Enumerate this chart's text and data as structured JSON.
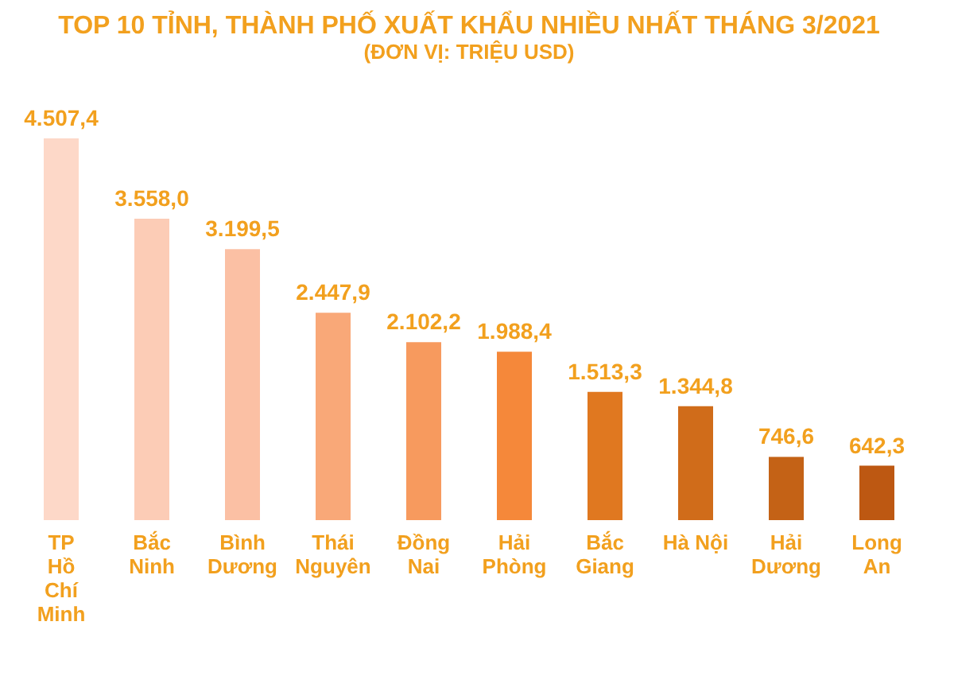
{
  "chart_data": {
    "type": "bar",
    "title": "TOP 10 TỈNH, THÀNH PHỐ XUẤT KHẨU NHIỀU NHẤT THÁNG 3/2021",
    "subtitle": "(ĐƠN VỊ: TRIỆU USD)",
    "categories": [
      "TP Hồ Chí Minh",
      "Bắc Ninh",
      "Bình Dương",
      "Thái Nguyên",
      "Đồng Nai",
      "Hải Phòng",
      "Bắc Giang",
      "Hà Nội",
      "Hải Dương",
      "Long An"
    ],
    "values": [
      4507.4,
      3558.0,
      3199.5,
      2447.9,
      2102.2,
      1988.4,
      1513.3,
      1344.8,
      746.6,
      642.3
    ],
    "value_labels": [
      "4.507,4",
      "3.558,0",
      "3.199,5",
      "2.447,9",
      "2.102,2",
      "1.988,4",
      "1.513,3",
      "1.344,8",
      "746,6",
      "642,3"
    ],
    "colors": [
      "#fdd8c8",
      "#fcccb6",
      "#fbc0a4",
      "#f9a878",
      "#f79a5e",
      "#f5883a",
      "#e07820",
      "#d06c1a",
      "#c46216",
      "#bd5812"
    ]
  }
}
